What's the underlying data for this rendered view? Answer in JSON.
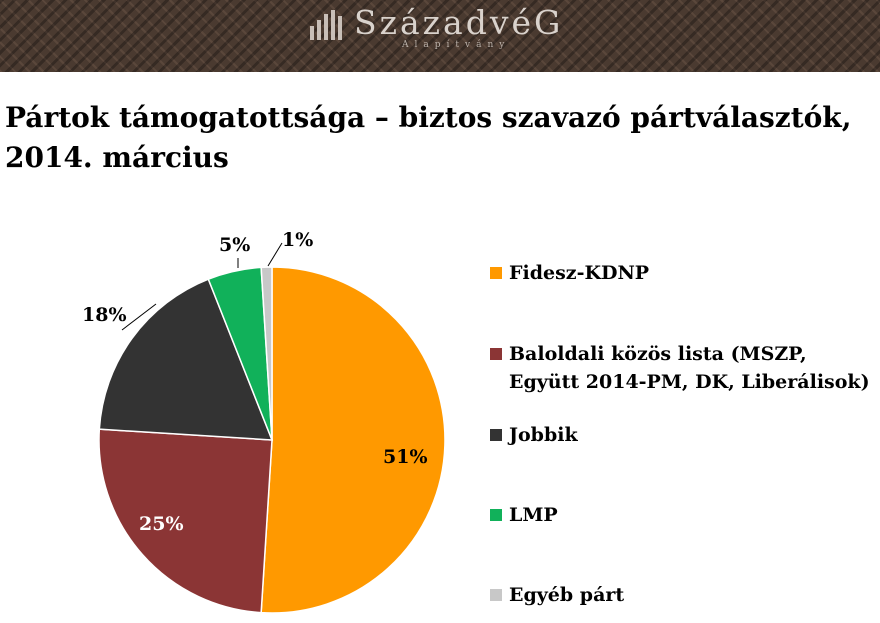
{
  "banner": {
    "logo_text": "SzázadvéG",
    "logo_subtitle": "Alapítvány"
  },
  "title_lines": [
    "Pártok támogatottsága – biztos szavazó pártválasztók,",
    "2014. március"
  ],
  "chart_data": {
    "type": "pie",
    "title": "Pártok támogatottsága – biztos szavazó pártválasztók, 2014. március",
    "start": "12 o'clock, clockwise",
    "legend_position": "right",
    "slices": [
      {
        "name": "Fidesz-KDNP",
        "label_lines": [
          "Fidesz-KDNP"
        ],
        "value": 51,
        "label": "51%",
        "color": "#ff9900"
      },
      {
        "name": "Baloldali közös lista (MSZP, Együtt 2014-PM, DK, Liberálisok)",
        "label_lines": [
          "Baloldali közös lista (MSZP,",
          "Együtt 2014-PM, DK, Liberálisok)"
        ],
        "value": 25,
        "label": "25%",
        "color": "#8b3535"
      },
      {
        "name": "Jobbik",
        "label_lines": [
          "Jobbik"
        ],
        "value": 18,
        "label": "18%",
        "color": "#333333"
      },
      {
        "name": "LMP",
        "label_lines": [
          "LMP"
        ],
        "value": 5,
        "label": "5%",
        "color": "#11b15a"
      },
      {
        "name": "Egyéb párt",
        "label_lines": [
          "Egyéb párt"
        ],
        "value": 1,
        "label": "1%",
        "color": "#c8c8c8"
      }
    ]
  }
}
